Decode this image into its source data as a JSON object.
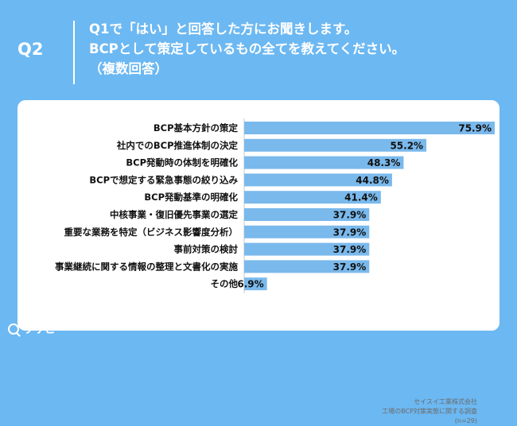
{
  "header": {
    "qnum": "Q2",
    "lines": [
      "Q1で「はい」と回答した方にお聞きします。",
      "BCPとして策定しているもの全てを教えてください。",
      "（複数回答）"
    ]
  },
  "chart_data": {
    "type": "bar",
    "orientation": "horizontal",
    "categories": [
      "BCP基本方針の策定",
      "社内でのBCP推進体制の決定",
      "BCP発動時の体制を明確化",
      "BCPで想定する緊急事態の絞り込み",
      "BCP発動基準の明確化",
      "中核事業・復旧優先事業の選定",
      "重要な業務を特定（ビジネス影響度分析）",
      "事前対策の検討",
      "事業継続に関する情報の整理と文書化の実施",
      "その他"
    ],
    "values": [
      75.9,
      55.2,
      48.3,
      44.8,
      41.4,
      37.9,
      37.9,
      37.9,
      37.9,
      6.9
    ],
    "value_labels": [
      "75.9%",
      "55.2%",
      "48.3%",
      "44.8%",
      "41.4%",
      "37.9%",
      "37.9%",
      "37.9%",
      "37.9%",
      "6.9%"
    ],
    "xlim": [
      0,
      100
    ],
    "bar_color": "#7ab9ec",
    "grid": false
  },
  "source": {
    "lines": [
      "セイスイ工業株式会社",
      "工場のBCP対策実態に関する調査",
      "(n=29)"
    ]
  },
  "brand": {
    "name": "リサピー",
    "icon": "search-icon"
  },
  "colors": {
    "background": "#6cb8f2",
    "card": "#ffffff",
    "bar": "#7ab9ec",
    "text": "#111111"
  }
}
